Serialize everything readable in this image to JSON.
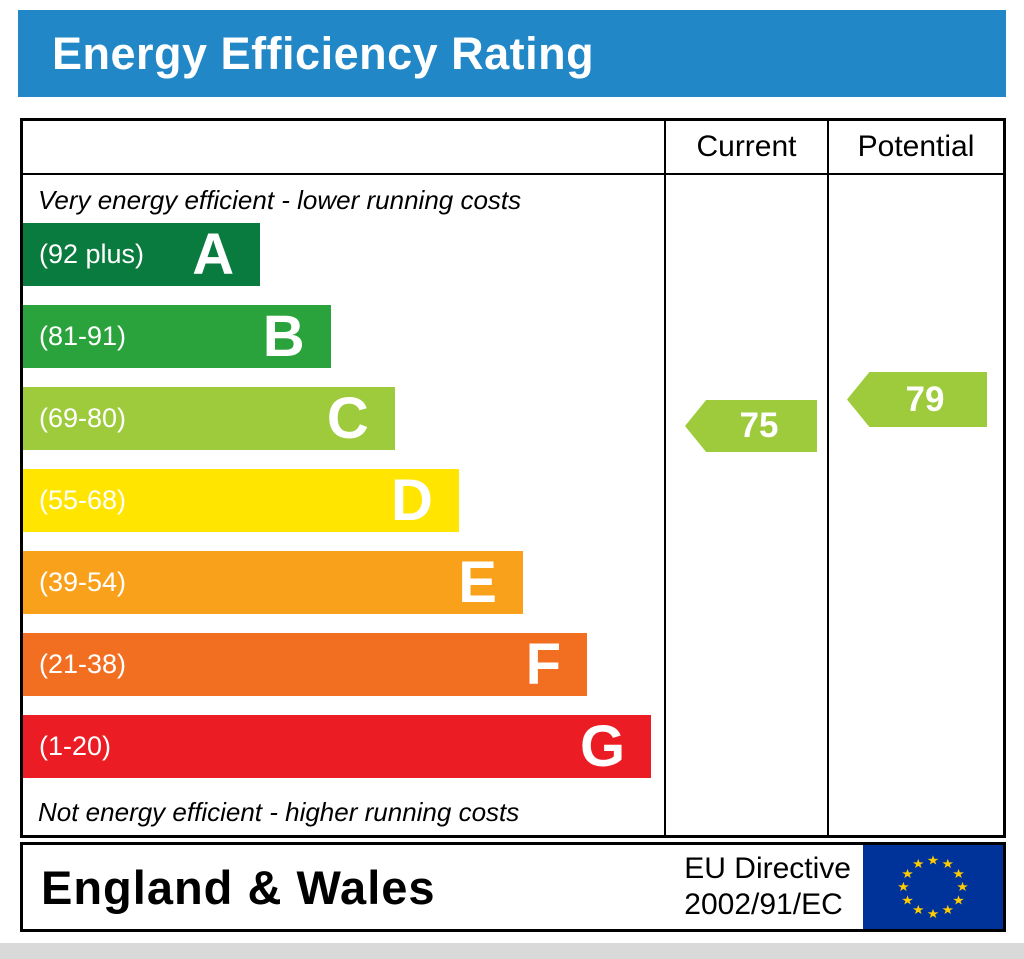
{
  "title": "Energy Efficiency Rating",
  "header": {
    "current": "Current",
    "potential": "Potential"
  },
  "notes": {
    "top": "Very energy efficient - lower running costs",
    "bottom": "Not energy efficient - higher running costs"
  },
  "bands": [
    {
      "letter": "A",
      "range": "(92 plus)",
      "color": "#0a7b3e",
      "width_pct": 37
    },
    {
      "letter": "B",
      "range": "(81-91)",
      "color": "#2ba33c",
      "width_pct": 48
    },
    {
      "letter": "C",
      "range": "(69-80)",
      "color": "#9dcb3c",
      "width_pct": 58
    },
    {
      "letter": "D",
      "range": "(55-68)",
      "color": "#ffe500",
      "width_pct": 68
    },
    {
      "letter": "E",
      "range": "(39-54)",
      "color": "#f9a11b",
      "width_pct": 78
    },
    {
      "letter": "F",
      "range": "(21-38)",
      "color": "#f26f22",
      "width_pct": 88
    },
    {
      "letter": "G",
      "range": "(1-20)",
      "color": "#ec1c24",
      "width_pct": 98
    }
  ],
  "current": {
    "value": "75",
    "color": "#9dcb3c"
  },
  "potential": {
    "value": "79",
    "color": "#9dcb3c"
  },
  "footer": {
    "region": "England & Wales",
    "directive_line1": "EU Directive",
    "directive_line2": "2002/91/EC"
  },
  "colors": {
    "title_bar": "#2187c7",
    "flag_blue": "#003399",
    "flag_star": "#ffcc00"
  },
  "chart_data": {
    "type": "bar",
    "title": "Energy Efficiency Rating",
    "categories": [
      "A (92 plus)",
      "B (81-91)",
      "C (69-80)",
      "D (55-68)",
      "E (39-54)",
      "F (21-38)",
      "G (1-20)"
    ],
    "values": [
      37,
      48,
      58,
      68,
      78,
      88,
      98
    ],
    "value_unit": "relative bar length %",
    "band_colors": [
      "#0a7b3e",
      "#2ba33c",
      "#9dcb3c",
      "#ffe500",
      "#f9a11b",
      "#f26f22",
      "#ec1c24"
    ],
    "markers": {
      "current": 75,
      "current_band": "C",
      "potential": 79,
      "potential_band": "C"
    },
    "columns": [
      "Current",
      "Potential"
    ],
    "annotations": [
      "Very energy efficient - lower running costs",
      "Not energy efficient - higher running costs"
    ],
    "footer": "England & Wales — EU Directive 2002/91/EC",
    "legend_position": "none",
    "grid": false
  }
}
